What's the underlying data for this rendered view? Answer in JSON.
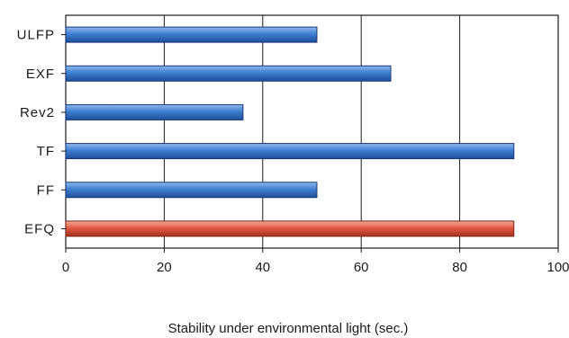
{
  "chart_data": {
    "type": "bar",
    "orientation": "horizontal",
    "categories": [
      "ULFP",
      "EXF",
      "Rev2",
      "TF",
      "FF",
      "EFQ"
    ],
    "values": [
      51,
      66,
      36,
      91,
      51,
      91
    ],
    "xlabel": "Stability under environmental light (sec.)",
    "ylabel": "",
    "xlim": [
      0,
      100
    ],
    "xticks": [
      0,
      20,
      40,
      60,
      80,
      100
    ],
    "grid": "vertical",
    "colors": {
      "default": "#3f7fd0",
      "highlight": "#e05a45",
      "highlight_category": "EFQ"
    }
  }
}
